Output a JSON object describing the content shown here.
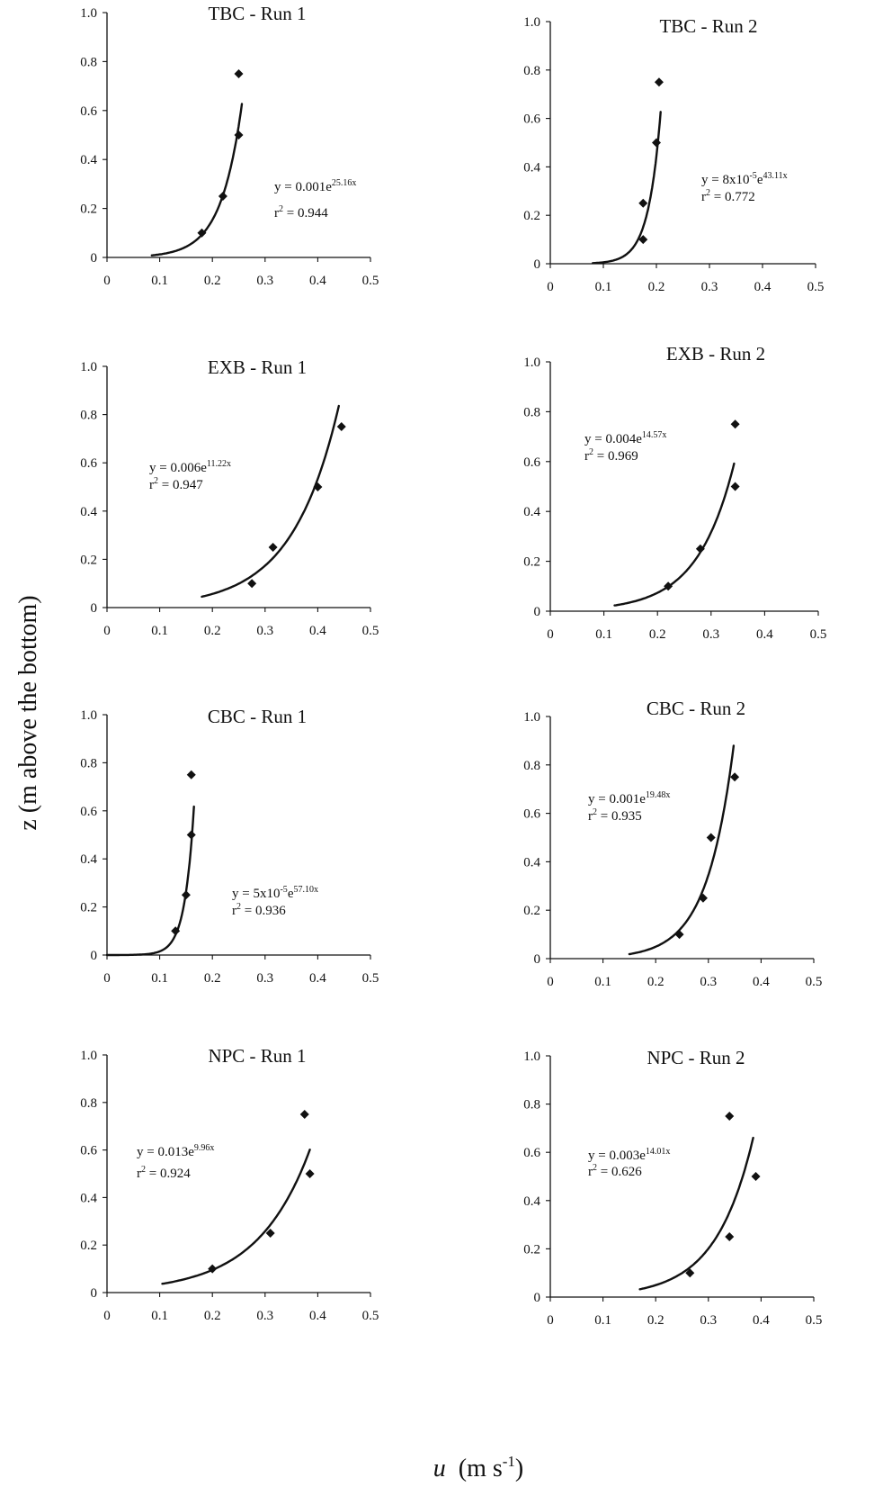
{
  "figure": {
    "ylabel": "z  (m above the bottom)",
    "xlabel": {
      "symbol": "u",
      "units": "(m s",
      "exponent": "-1",
      "close": ")"
    }
  },
  "chart_data": [
    {
      "type": "scatter",
      "title": "TBC - Run 1",
      "xlim": [
        0,
        0.5
      ],
      "ylim": [
        0,
        1.0
      ],
      "x_ticks": [
        "0",
        "0.1",
        "0.2",
        "0.3",
        "0.4",
        "0.5"
      ],
      "y_ticks": [
        "0",
        "0.2",
        "0.4",
        "0.6",
        "0.8",
        "1.0"
      ],
      "points": [
        [
          0.18,
          0.1
        ],
        [
          0.22,
          0.25
        ],
        [
          0.25,
          0.5
        ],
        [
          0.25,
          0.75
        ]
      ],
      "fit": {
        "a": 0.001,
        "b": 25.16,
        "x_range": [
          0.085,
          0.256
        ]
      },
      "equation": {
        "pre": "y = 0.001e",
        "exp": "25.16x"
      },
      "r2": {
        "pre": "r",
        "sup": "2",
        "post": " = 0.944"
      }
    },
    {
      "type": "scatter",
      "title": "TBC - Run 2",
      "xlim": [
        0,
        0.5
      ],
      "ylim": [
        0,
        1.0
      ],
      "x_ticks": [
        "0",
        "0.1",
        "0.2",
        "0.3",
        "0.4",
        "0.5"
      ],
      "y_ticks": [
        "0",
        "0.2",
        "0.4",
        "0.6",
        "0.8",
        "1.0"
      ],
      "points": [
        [
          0.175,
          0.1
        ],
        [
          0.175,
          0.25
        ],
        [
          0.2,
          0.5
        ],
        [
          0.205,
          0.75
        ]
      ],
      "fit": {
        "a": 8e-05,
        "b": 43.11,
        "x_range": [
          0.08,
          0.208
        ]
      },
      "equation": {
        "pre": "y = 8x10",
        "mid_sup": "-5",
        "mid": "e",
        "exp": "43.11x"
      },
      "r2": {
        "pre": "r",
        "sup": "2",
        "post": " = 0.772"
      }
    },
    {
      "type": "scatter",
      "title": "EXB - Run 1",
      "xlim": [
        0,
        0.5
      ],
      "ylim": [
        0,
        1.0
      ],
      "x_ticks": [
        "0",
        "0.1",
        "0.2",
        "0.3",
        "0.4",
        "0.5"
      ],
      "y_ticks": [
        "0",
        "0.2",
        "0.4",
        "0.6",
        "0.8",
        "1.0"
      ],
      "points": [
        [
          0.275,
          0.1
        ],
        [
          0.315,
          0.25
        ],
        [
          0.4,
          0.5
        ],
        [
          0.445,
          0.75
        ]
      ],
      "fit": {
        "a": 0.006,
        "b": 11.22,
        "x_range": [
          0.18,
          0.44
        ]
      },
      "equation": {
        "pre": "y = 0.006e",
        "exp": "11.22x"
      },
      "r2": {
        "pre": "r",
        "sup": "2",
        "post": " = 0.947"
      }
    },
    {
      "type": "scatter",
      "title": "EXB - Run 2",
      "xlim": [
        0,
        0.5
      ],
      "ylim": [
        0,
        1.0
      ],
      "x_ticks": [
        "0",
        "0.1",
        "0.2",
        "0.3",
        "0.4",
        "0.5"
      ],
      "y_ticks": [
        "0",
        "0.2",
        "0.4",
        "0.6",
        "0.8",
        "1.0"
      ],
      "points": [
        [
          0.22,
          0.1
        ],
        [
          0.28,
          0.25
        ],
        [
          0.345,
          0.5
        ],
        [
          0.345,
          0.75
        ]
      ],
      "fit": {
        "a": 0.004,
        "b": 14.57,
        "x_range": [
          0.12,
          0.343
        ]
      },
      "equation": {
        "pre": "y = 0.004e",
        "exp": "14.57x"
      },
      "r2": {
        "pre": "r",
        "sup": "2",
        "post": " = 0.969"
      }
    },
    {
      "type": "scatter",
      "title": "CBC - Run 1",
      "xlim": [
        0,
        0.5
      ],
      "ylim": [
        0,
        1.0
      ],
      "x_ticks": [
        "0",
        "0.1",
        "0.2",
        "0.3",
        "0.4",
        "0.5"
      ],
      "y_ticks": [
        "0",
        "0.2",
        "0.4",
        "0.6",
        "0.8",
        "1.0"
      ],
      "points": [
        [
          0.13,
          0.1
        ],
        [
          0.15,
          0.25
        ],
        [
          0.16,
          0.5
        ],
        [
          0.16,
          0.75
        ]
      ],
      "fit": {
        "a": 5e-05,
        "b": 57.1,
        "x_range": [
          0.0,
          0.165
        ]
      },
      "equation": {
        "pre": "y = 5x10",
        "mid_sup": "-5",
        "mid": "e",
        "exp": "57.10x"
      },
      "r2": {
        "pre": "r",
        "sup": "2",
        "post": " = 0.936"
      }
    },
    {
      "type": "scatter",
      "title": "CBC - Run 2",
      "xlim": [
        0,
        0.5
      ],
      "ylim": [
        0,
        1.0
      ],
      "x_ticks": [
        "0",
        "0.1",
        "0.2",
        "0.3",
        "0.4",
        "0.5"
      ],
      "y_ticks": [
        "0",
        "0.2",
        "0.4",
        "0.6",
        "0.8",
        "1.0"
      ],
      "points": [
        [
          0.245,
          0.1
        ],
        [
          0.29,
          0.25
        ],
        [
          0.305,
          0.5
        ],
        [
          0.35,
          0.75
        ]
      ],
      "fit": {
        "a": 0.001,
        "b": 19.48,
        "x_range": [
          0.15,
          0.348
        ]
      },
      "equation": {
        "pre": "y = 0.001e",
        "exp": "19.48x"
      },
      "r2": {
        "pre": "r",
        "sup": "2",
        "post": " = 0.935"
      }
    },
    {
      "type": "scatter",
      "title": "NPC - Run 1",
      "xlim": [
        0,
        0.5
      ],
      "ylim": [
        0,
        1.0
      ],
      "x_ticks": [
        "0",
        "0.1",
        "0.2",
        "0.3",
        "0.4",
        "0.5"
      ],
      "y_ticks": [
        "0",
        "0.2",
        "0.4",
        "0.6",
        "0.8",
        "1.0"
      ],
      "points": [
        [
          0.2,
          0.1
        ],
        [
          0.31,
          0.25
        ],
        [
          0.375,
          0.75
        ],
        [
          0.385,
          0.5
        ]
      ],
      "fit": {
        "a": 0.013,
        "b": 9.96,
        "x_range": [
          0.105,
          0.385
        ]
      },
      "equation": {
        "pre": "y  = 0.013e",
        "exp": "9.96x"
      },
      "r2": {
        "pre": "r",
        "sup": "2",
        "post": " = 0.924"
      }
    },
    {
      "type": "scatter",
      "title": "NPC - Run 2",
      "xlim": [
        0,
        0.5
      ],
      "ylim": [
        0,
        1.0
      ],
      "x_ticks": [
        "0",
        "0.1",
        "0.2",
        "0.3",
        "0.4",
        "0.5"
      ],
      "y_ticks": [
        "0",
        "0.2",
        "0.4",
        "0.6",
        "0.8",
        "1.0"
      ],
      "points": [
        [
          0.265,
          0.1
        ],
        [
          0.34,
          0.25
        ],
        [
          0.34,
          0.75
        ],
        [
          0.39,
          0.5
        ]
      ],
      "fit": {
        "a": 0.003,
        "b": 14.01,
        "x_range": [
          0.17,
          0.385
        ]
      },
      "equation": {
        "pre": "y = 0.003e",
        "exp": "14.01x"
      },
      "r2": {
        "pre": "r",
        "sup": "2",
        "post": " = 0.626"
      }
    }
  ]
}
